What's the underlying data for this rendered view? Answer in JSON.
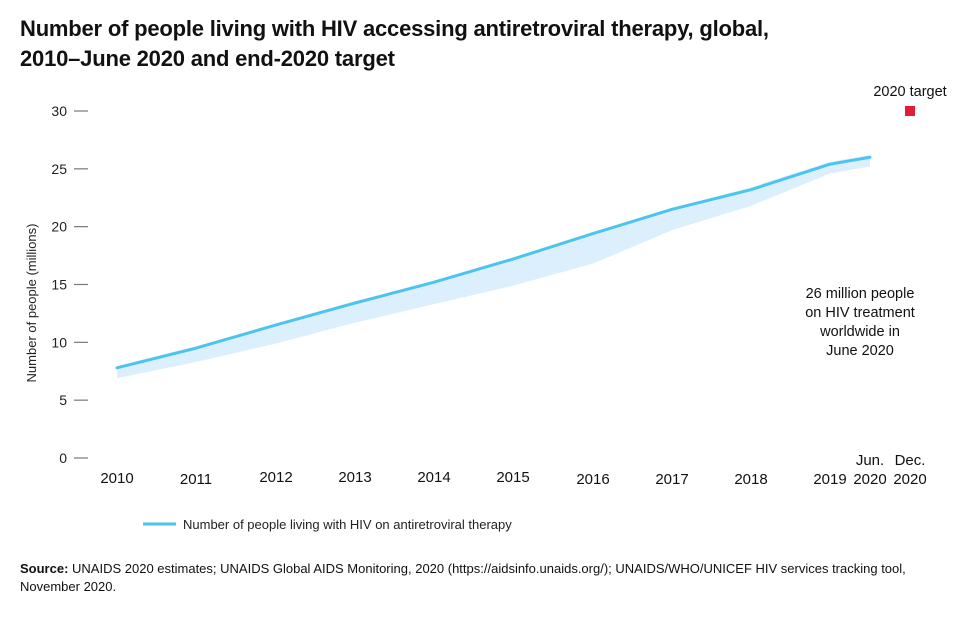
{
  "chart_data": {
    "type": "line",
    "title": "Number of people living with HIV accessing antiretroviral therapy, global, 2010–June 2020 and end-2020 target",
    "ylabel": "Number of people (millions)",
    "xlabel": "",
    "ylim": [
      0,
      30
    ],
    "yticks": [
      0,
      5,
      10,
      15,
      20,
      25,
      30
    ],
    "categories": [
      "2010",
      "2011",
      "2012",
      "2013",
      "2014",
      "2015",
      "2016",
      "2017",
      "2018",
      "2019",
      "Jun. 2020",
      "Dec. 2020"
    ],
    "category_labels": [
      [
        "2010"
      ],
      [
        "2011"
      ],
      [
        "2012"
      ],
      [
        "2013"
      ],
      [
        "2014"
      ],
      [
        "2015"
      ],
      [
        "2016"
      ],
      [
        "2017"
      ],
      [
        "2018"
      ],
      [
        "2019"
      ],
      [
        "Jun.",
        "2020"
      ],
      [
        "Dec.",
        "2020"
      ]
    ],
    "series": [
      {
        "name": "Number of people living with HIV on antiretroviral therapy",
        "color": "#4dc3f0",
        "values": [
          7.8,
          9.5,
          11.5,
          13.4,
          15.2,
          17.2,
          19.4,
          21.5,
          23.2,
          25.4,
          26.0,
          null
        ],
        "lower": [
          6.9,
          8.3,
          9.9,
          11.7,
          13.3,
          14.9,
          16.8,
          19.7,
          21.8,
          24.6,
          25.2,
          null
        ],
        "upper": [
          7.9,
          9.6,
          11.6,
          13.5,
          15.3,
          17.3,
          19.5,
          21.6,
          23.4,
          25.6,
          26.2,
          null
        ]
      }
    ],
    "band_color": "#dbf0fc",
    "target": {
      "label": "2020 target",
      "category": "Dec. 2020",
      "value": 30,
      "color": "#e31b3b"
    },
    "annotation": [
      "26 million people",
      "on HIV treatment",
      "worldwide in",
      "June 2020"
    ],
    "legend": {
      "position": "bottom-left",
      "entries": [
        "Number of people living with HIV on antiretroviral therapy"
      ]
    },
    "grid": false
  },
  "title_lines": [
    "Number of people living with HIV accessing antiretroviral therapy, global,",
    "2010–June 2020 and end-2020 target"
  ],
  "source": {
    "label": "Source:",
    "text": " UNAIDS 2020 estimates; UNAIDS Global AIDS Monitoring, 2020 (https://aidsinfo.unaids.org/); UNAIDS/WHO/UNICEF HIV services tracking tool, November 2020."
  }
}
